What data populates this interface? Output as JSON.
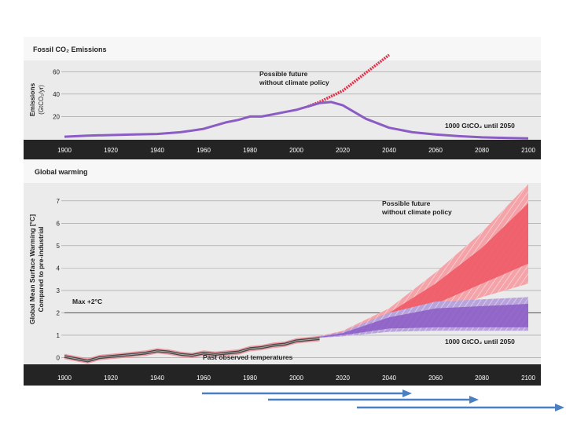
{
  "colors": {
    "panel_bg": "#ebebeb",
    "title_bar": "#f7f7f7",
    "axis_bar": "#242424",
    "emissions_line": "#8a5cc4",
    "no_policy_line": "#e0304a",
    "red_band": "#ee5a66",
    "purple_band": "#8a5cc4",
    "observed": "#555555",
    "arrow": "#4a7fc1"
  },
  "chart_data": [
    {
      "type": "line",
      "title": "Fossil CO₂ Emissions",
      "ylabel_line1": "Emissions",
      "ylabel_line2": "(GtCO₂/yr)",
      "xlim": [
        1900,
        2100
      ],
      "ylim": [
        0,
        70
      ],
      "yticks": [
        20,
        40,
        60
      ],
      "xticks": [
        1900,
        1920,
        1940,
        1960,
        1980,
        2000,
        2020,
        2040,
        2060,
        2080,
        2100
      ],
      "series": [
        {
          "name": "Historical and 1000 GtCO₂ until 2050",
          "x": [
            1900,
            1910,
            1920,
            1930,
            1940,
            1950,
            1955,
            1960,
            1970,
            1975,
            1980,
            1985,
            1990,
            1995,
            2000,
            2005,
            2010,
            2015,
            2020,
            2030,
            2040,
            2050,
            2060,
            2070,
            2080,
            2090,
            2100
          ],
          "y": [
            2,
            3,
            3.5,
            4,
            4.5,
            6,
            7.5,
            9,
            15,
            17,
            20,
            20,
            22,
            24,
            26,
            29,
            32,
            33,
            30,
            18,
            10,
            6,
            4,
            2.5,
            1.5,
            1,
            0.5
          ]
        },
        {
          "name": "Possible future without climate policy",
          "x": [
            2005,
            2010,
            2015,
            2020,
            2025,
            2030,
            2035,
            2040
          ],
          "y": [
            29,
            33,
            38,
            43,
            51,
            59,
            67,
            76
          ]
        }
      ],
      "annotations": {
        "no_policy_line1": "Possible future",
        "no_policy_line2": "without climate policy",
        "budget": "1000 GtCO₂ until 2050"
      }
    },
    {
      "type": "area",
      "title": "Global warming",
      "ylabel_line1": "Global Mean Surface Warming [°C]",
      "ylabel_line2": "Compared to pre-industrial",
      "xlim": [
        1900,
        2100
      ],
      "ylim": [
        -0.3,
        7.8
      ],
      "yticks": [
        0,
        1,
        2,
        3,
        4,
        5,
        6,
        7
      ],
      "xticks": [
        1900,
        1920,
        1940,
        1960,
        1980,
        2000,
        2020,
        2040,
        2060,
        2080,
        2100
      ],
      "reference": {
        "label": "Max +2°C",
        "value": 2
      },
      "red_band": {
        "x": [
          2005,
          2020,
          2040,
          2060,
          2080,
          2100
        ],
        "low": [
          0.85,
          1.0,
          1.4,
          2.0,
          2.7,
          3.3
        ],
        "high": [
          0.85,
          1.2,
          2.2,
          3.8,
          5.6,
          7.9
        ],
        "core_low": [
          0.85,
          1.05,
          1.6,
          2.4,
          3.3,
          4.2
        ],
        "core_high": [
          0.85,
          1.15,
          2.0,
          3.3,
          4.9,
          6.9
        ]
      },
      "purple_band": {
        "x": [
          2005,
          2020,
          2040,
          2060,
          2080,
          2100
        ],
        "low": [
          0.85,
          0.95,
          1.15,
          1.2,
          1.2,
          1.2
        ],
        "high": [
          0.85,
          1.15,
          2.0,
          2.5,
          2.6,
          2.7
        ],
        "core_low": [
          0.85,
          1.0,
          1.3,
          1.35,
          1.35,
          1.35
        ],
        "core_high": [
          0.85,
          1.1,
          1.8,
          2.2,
          2.3,
          2.4
        ]
      },
      "observed": {
        "name": "Past observed temperatures",
        "x": [
          1900,
          1905,
          1910,
          1915,
          1920,
          1925,
          1930,
          1935,
          1940,
          1945,
          1950,
          1955,
          1960,
          1965,
          1970,
          1975,
          1980,
          1985,
          1990,
          1995,
          2000,
          2005,
          2010
        ],
        "y": [
          0.05,
          -0.05,
          -0.15,
          0.0,
          0.05,
          0.1,
          0.15,
          0.2,
          0.3,
          0.25,
          0.15,
          0.1,
          0.2,
          0.15,
          0.2,
          0.25,
          0.4,
          0.45,
          0.55,
          0.6,
          0.75,
          0.8,
          0.85
        ]
      },
      "annotations": {
        "no_policy_line1": "Possible future",
        "no_policy_line2": "without climate policy",
        "budget": "1000 GtCO₂ until 2050",
        "observed": "Past observed temperatures"
      }
    }
  ]
}
